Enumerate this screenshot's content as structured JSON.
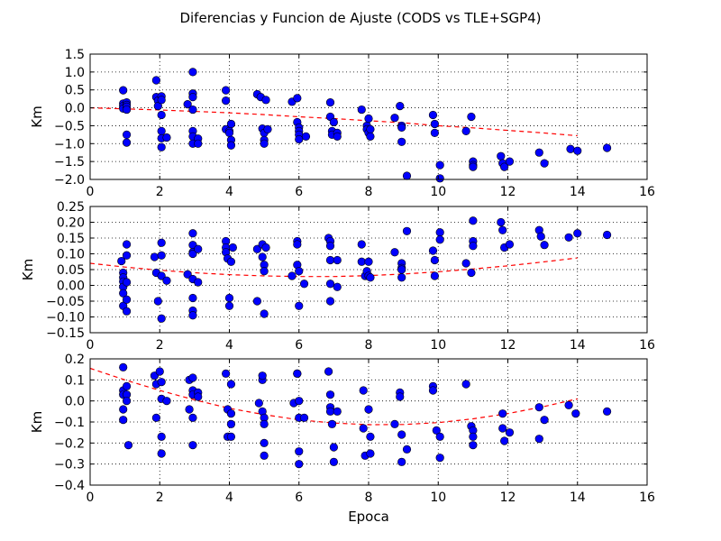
{
  "figure_title": "Diferencias y Funcion de Ajuste (CODS vs TLE+SGP4)",
  "colors": {
    "points": "#0000ff",
    "point_edge": "#000000",
    "fit": "#ff0000",
    "grid": "#000000"
  },
  "chart_data": [
    {
      "type": "scatter",
      "xlabel": "",
      "ylabel": "Km",
      "xlim": [
        0,
        16
      ],
      "ylim": [
        -2.0,
        1.5
      ],
      "xticks": [
        0,
        2,
        4,
        6,
        8,
        10,
        12,
        14,
        16
      ],
      "yticks": [
        -2.0,
        -1.5,
        -1.0,
        -0.5,
        0.0,
        0.5,
        1.0,
        1.5
      ],
      "xtick_labels": [
        "0",
        "2",
        "4",
        "6",
        "8",
        "10",
        "12",
        "14",
        "16"
      ],
      "ytick_labels": [
        "−2.0",
        "−1.5",
        "−1.0",
        "−0.5",
        "0.0",
        "0.5",
        "1.0",
        "1.5"
      ],
      "grid": true,
      "points": [
        [
          0.95,
          0.49
        ],
        [
          0.95,
          0.12
        ],
        [
          0.95,
          0.05
        ],
        [
          0.95,
          -0.02
        ],
        [
          1.05,
          0.15
        ],
        [
          1.05,
          0.08
        ],
        [
          1.05,
          0.03
        ],
        [
          1.05,
          -0.05
        ],
        [
          1.05,
          -0.75
        ],
        [
          1.05,
          -0.97
        ],
        [
          1.9,
          0.77
        ],
        [
          1.9,
          0.3
        ],
        [
          1.95,
          0.2
        ],
        [
          1.95,
          0.05
        ],
        [
          2.05,
          0.32
        ],
        [
          2.05,
          0.22
        ],
        [
          2.05,
          -0.2
        ],
        [
          2.05,
          -0.65
        ],
        [
          2.05,
          -0.85
        ],
        [
          2.05,
          -1.1
        ],
        [
          2.2,
          -0.83
        ],
        [
          2.8,
          0.1
        ],
        [
          2.95,
          1.0
        ],
        [
          2.95,
          0.4
        ],
        [
          2.95,
          0.3
        ],
        [
          2.95,
          -0.05
        ],
        [
          2.95,
          -0.65
        ],
        [
          2.95,
          -0.8
        ],
        [
          2.95,
          -1.0
        ],
        [
          3.1,
          -0.86
        ],
        [
          3.1,
          -1.0
        ],
        [
          3.9,
          0.49
        ],
        [
          3.9,
          0.2
        ],
        [
          3.9,
          -0.6
        ],
        [
          4.0,
          -0.65
        ],
        [
          4.0,
          -0.7
        ],
        [
          4.05,
          -0.45
        ],
        [
          4.05,
          -0.9
        ],
        [
          4.05,
          -1.05
        ],
        [
          4.8,
          0.38
        ],
        [
          4.9,
          0.3
        ],
        [
          4.95,
          -0.58
        ],
        [
          5.0,
          -0.7
        ],
        [
          5.0,
          -0.9
        ],
        [
          5.0,
          -1.0
        ],
        [
          5.05,
          0.22
        ],
        [
          5.1,
          -0.6
        ],
        [
          5.8,
          0.17
        ],
        [
          5.95,
          0.27
        ],
        [
          5.95,
          -0.4
        ],
        [
          6.0,
          -0.55
        ],
        [
          6.0,
          -0.65
        ],
        [
          6.0,
          -0.75
        ],
        [
          6.0,
          -0.88
        ],
        [
          6.2,
          -0.8
        ],
        [
          6.9,
          0.15
        ],
        [
          6.9,
          -0.25
        ],
        [
          6.95,
          -0.65
        ],
        [
          6.95,
          -0.75
        ],
        [
          7.0,
          -0.4
        ],
        [
          7.1,
          -0.7
        ],
        [
          7.1,
          -0.8
        ],
        [
          7.8,
          -0.05
        ],
        [
          7.95,
          -0.5
        ],
        [
          7.95,
          -0.6
        ],
        [
          8.0,
          -0.3
        ],
        [
          8.0,
          -0.7
        ],
        [
          8.05,
          -0.6
        ],
        [
          8.05,
          -0.8
        ],
        [
          8.75,
          -0.28
        ],
        [
          8.9,
          0.05
        ],
        [
          8.95,
          -0.5
        ],
        [
          8.95,
          -0.55
        ],
        [
          8.95,
          -0.95
        ],
        [
          9.1,
          -1.9
        ],
        [
          9.85,
          -0.2
        ],
        [
          9.9,
          -0.45
        ],
        [
          9.9,
          -0.7
        ],
        [
          10.05,
          -1.6
        ],
        [
          10.05,
          -1.97
        ],
        [
          10.8,
          -0.65
        ],
        [
          10.95,
          -0.25
        ],
        [
          11.0,
          -1.5
        ],
        [
          11.0,
          -1.6
        ],
        [
          11.0,
          -1.65
        ],
        [
          11.8,
          -1.35
        ],
        [
          11.85,
          -1.55
        ],
        [
          11.9,
          -1.65
        ],
        [
          12.05,
          -1.5
        ],
        [
          12.9,
          -1.25
        ],
        [
          13.05,
          -1.55
        ],
        [
          13.8,
          -1.15
        ],
        [
          14.0,
          -1.2
        ],
        [
          14.85,
          -1.12
        ]
      ],
      "fit_curve": [
        [
          0,
          0.0
        ],
        [
          1,
          -0.03
        ],
        [
          2,
          -0.06
        ],
        [
          3,
          -0.1
        ],
        [
          4,
          -0.14
        ],
        [
          5,
          -0.19
        ],
        [
          6,
          -0.25
        ],
        [
          7,
          -0.3
        ],
        [
          8,
          -0.36
        ],
        [
          9,
          -0.42
        ],
        [
          10,
          -0.5
        ],
        [
          11,
          -0.56
        ],
        [
          12,
          -0.63
        ],
        [
          13,
          -0.7
        ],
        [
          14,
          -0.78
        ]
      ]
    },
    {
      "type": "scatter",
      "xlabel": "",
      "ylabel": "Km",
      "xlim": [
        0,
        16
      ],
      "ylim": [
        -0.15,
        0.25
      ],
      "xticks": [
        0,
        2,
        4,
        6,
        8,
        10,
        12,
        14,
        16
      ],
      "yticks": [
        -0.15,
        -0.1,
        -0.05,
        0.0,
        0.05,
        0.1,
        0.15,
        0.2,
        0.25
      ],
      "xtick_labels": [
        "0",
        "2",
        "4",
        "6",
        "8",
        "10",
        "12",
        "14",
        "16"
      ],
      "ytick_labels": [
        "−0.15",
        "−0.10",
        "−0.05",
        "0.00",
        "0.05",
        "0.10",
        "0.15",
        "0.20",
        "0.25"
      ],
      "grid": true,
      "points": [
        [
          0.9,
          0.077
        ],
        [
          0.95,
          0.04
        ],
        [
          0.95,
          0.025
        ],
        [
          0.95,
          0.012
        ],
        [
          0.95,
          -0.005
        ],
        [
          0.95,
          -0.025
        ],
        [
          0.95,
          -0.065
        ],
        [
          1.05,
          0.13
        ],
        [
          1.05,
          0.095
        ],
        [
          1.05,
          0.01
        ],
        [
          1.05,
          -0.045
        ],
        [
          1.05,
          -0.082
        ],
        [
          1.85,
          0.09
        ],
        [
          1.9,
          0.04
        ],
        [
          1.95,
          -0.05
        ],
        [
          2.05,
          0.135
        ],
        [
          2.05,
          0.095
        ],
        [
          2.05,
          0.03
        ],
        [
          2.05,
          -0.105
        ],
        [
          2.2,
          0.015
        ],
        [
          2.8,
          0.035
        ],
        [
          2.95,
          0.165
        ],
        [
          2.95,
          0.128
        ],
        [
          2.95,
          0.105
        ],
        [
          2.95,
          0.1
        ],
        [
          2.95,
          0.02
        ],
        [
          2.95,
          -0.04
        ],
        [
          2.95,
          -0.08
        ],
        [
          2.95,
          -0.095
        ],
        [
          3.1,
          0.115
        ],
        [
          3.1,
          0.01
        ],
        [
          3.9,
          0.14
        ],
        [
          3.9,
          0.12
        ],
        [
          3.9,
          0.105
        ],
        [
          3.95,
          0.085
        ],
        [
          4.0,
          -0.04
        ],
        [
          4.0,
          -0.065
        ],
        [
          4.05,
          0.075
        ],
        [
          4.1,
          0.12
        ],
        [
          4.8,
          0.115
        ],
        [
          4.8,
          -0.05
        ],
        [
          4.95,
          0.13
        ],
        [
          4.95,
          0.09
        ],
        [
          5.0,
          0.065
        ],
        [
          5.0,
          0.045
        ],
        [
          5.0,
          -0.09
        ],
        [
          5.05,
          0.12
        ],
        [
          5.8,
          0.03
        ],
        [
          5.95,
          0.14
        ],
        [
          5.95,
          0.13
        ],
        [
          5.95,
          0.065
        ],
        [
          6.0,
          0.045
        ],
        [
          6.0,
          -0.065
        ],
        [
          6.15,
          0.005
        ],
        [
          6.85,
          0.15
        ],
        [
          6.9,
          0.14
        ],
        [
          6.9,
          0.125
        ],
        [
          6.9,
          0.08
        ],
        [
          6.9,
          0.005
        ],
        [
          6.9,
          -0.05
        ],
        [
          7.1,
          0.08
        ],
        [
          7.1,
          -0.005
        ],
        [
          7.8,
          0.13
        ],
        [
          7.8,
          0.075
        ],
        [
          7.9,
          0.03
        ],
        [
          7.95,
          0.045
        ],
        [
          8.0,
          0.075
        ],
        [
          8.0,
          0.03
        ],
        [
          8.05,
          0.025
        ],
        [
          8.75,
          0.105
        ],
        [
          8.95,
          0.07
        ],
        [
          8.95,
          0.055
        ],
        [
          8.95,
          0.05
        ],
        [
          8.95,
          0.025
        ],
        [
          9.1,
          0.172
        ],
        [
          9.85,
          0.11
        ],
        [
          9.9,
          0.08
        ],
        [
          9.9,
          0.03
        ],
        [
          10.05,
          0.168
        ],
        [
          10.05,
          0.145
        ],
        [
          10.8,
          0.07
        ],
        [
          10.95,
          0.04
        ],
        [
          11.0,
          0.205
        ],
        [
          11.0,
          0.14
        ],
        [
          11.0,
          0.125
        ],
        [
          11.8,
          0.2
        ],
        [
          11.85,
          0.175
        ],
        [
          11.9,
          0.12
        ],
        [
          12.05,
          0.13
        ],
        [
          12.9,
          0.175
        ],
        [
          12.95,
          0.155
        ],
        [
          13.05,
          0.128
        ],
        [
          13.75,
          0.152
        ],
        [
          14.0,
          0.165
        ],
        [
          14.85,
          0.16
        ]
      ],
      "fit_curve": [
        [
          0,
          0.07
        ],
        [
          1,
          0.058
        ],
        [
          2,
          0.048
        ],
        [
          3,
          0.04
        ],
        [
          4,
          0.034
        ],
        [
          5,
          0.03
        ],
        [
          6,
          0.028
        ],
        [
          7,
          0.028
        ],
        [
          8,
          0.031
        ],
        [
          9,
          0.036
        ],
        [
          10,
          0.043
        ],
        [
          11,
          0.052
        ],
        [
          12,
          0.062
        ],
        [
          13,
          0.074
        ],
        [
          14,
          0.087
        ]
      ]
    },
    {
      "type": "scatter",
      "xlabel": "Epoca",
      "ylabel": "Km",
      "xlim": [
        0,
        16
      ],
      "ylim": [
        -0.4,
        0.2
      ],
      "xticks": [
        0,
        2,
        4,
        6,
        8,
        10,
        12,
        14,
        16
      ],
      "yticks": [
        -0.4,
        -0.3,
        -0.2,
        -0.1,
        0.0,
        0.1,
        0.2
      ],
      "xtick_labels": [
        "0",
        "2",
        "4",
        "6",
        "8",
        "10",
        "12",
        "14",
        "16"
      ],
      "ytick_labels": [
        "−0.4",
        "−0.3",
        "−0.2",
        "−0.1",
        "0.0",
        "0.1",
        "0.2"
      ],
      "grid": true,
      "points": [
        [
          0.95,
          0.16
        ],
        [
          0.95,
          0.05
        ],
        [
          0.95,
          0.03
        ],
        [
          0.95,
          -0.04
        ],
        [
          0.95,
          -0.09
        ],
        [
          1.05,
          0.07
        ],
        [
          1.05,
          0.03
        ],
        [
          1.05,
          0.0
        ],
        [
          1.1,
          -0.21
        ],
        [
          1.85,
          0.12
        ],
        [
          1.9,
          0.08
        ],
        [
          1.9,
          -0.08
        ],
        [
          2.0,
          0.14
        ],
        [
          2.05,
          0.09
        ],
        [
          2.05,
          0.01
        ],
        [
          2.05,
          -0.17
        ],
        [
          2.05,
          -0.25
        ],
        [
          2.2,
          0.0
        ],
        [
          2.85,
          0.1
        ],
        [
          2.85,
          -0.04
        ],
        [
          2.95,
          0.11
        ],
        [
          2.95,
          0.05
        ],
        [
          2.95,
          0.03
        ],
        [
          2.95,
          -0.08
        ],
        [
          2.95,
          -0.21
        ],
        [
          3.1,
          0.04
        ],
        [
          3.1,
          0.02
        ],
        [
          3.9,
          0.13
        ],
        [
          3.95,
          -0.04
        ],
        [
          3.95,
          -0.17
        ],
        [
          4.05,
          0.08
        ],
        [
          4.05,
          -0.06
        ],
        [
          4.05,
          -0.17
        ],
        [
          4.05,
          -0.11
        ],
        [
          4.85,
          -0.01
        ],
        [
          4.95,
          0.1
        ],
        [
          4.95,
          0.12
        ],
        [
          4.95,
          -0.05
        ],
        [
          5.0,
          -0.08
        ],
        [
          5.0,
          -0.11
        ],
        [
          5.0,
          -0.2
        ],
        [
          5.0,
          -0.26
        ],
        [
          5.85,
          -0.01
        ],
        [
          5.95,
          0.13
        ],
        [
          5.95,
          0.13
        ],
        [
          6.0,
          0.0
        ],
        [
          6.0,
          -0.08
        ],
        [
          6.0,
          -0.24
        ],
        [
          6.0,
          -0.3
        ],
        [
          6.15,
          -0.08
        ],
        [
          6.85,
          0.14
        ],
        [
          6.9,
          0.03
        ],
        [
          6.9,
          -0.03
        ],
        [
          6.9,
          -0.05
        ],
        [
          6.95,
          -0.11
        ],
        [
          7.0,
          -0.22
        ],
        [
          7.0,
          -0.29
        ],
        [
          7.1,
          -0.05
        ],
        [
          7.85,
          0.05
        ],
        [
          7.85,
          -0.13
        ],
        [
          7.9,
          -0.26
        ],
        [
          8.0,
          -0.04
        ],
        [
          8.05,
          -0.17
        ],
        [
          8.05,
          -0.25
        ],
        [
          8.75,
          -0.11
        ],
        [
          8.9,
          0.04
        ],
        [
          8.9,
          0.02
        ],
        [
          8.95,
          -0.16
        ],
        [
          8.95,
          -0.29
        ],
        [
          9.1,
          -0.23
        ],
        [
          9.85,
          0.07
        ],
        [
          9.85,
          0.05
        ],
        [
          9.95,
          -0.14
        ],
        [
          10.05,
          -0.17
        ],
        [
          10.05,
          -0.27
        ],
        [
          10.8,
          0.08
        ],
        [
          10.95,
          -0.12
        ],
        [
          11.0,
          -0.14
        ],
        [
          11.0,
          -0.17
        ],
        [
          11.0,
          -0.21
        ],
        [
          11.85,
          -0.06
        ],
        [
          11.85,
          -0.13
        ],
        [
          11.9,
          -0.19
        ],
        [
          12.05,
          -0.15
        ],
        [
          12.9,
          -0.03
        ],
        [
          12.9,
          -0.18
        ],
        [
          13.05,
          -0.09
        ],
        [
          13.75,
          -0.02
        ],
        [
          13.95,
          -0.06
        ],
        [
          14.85,
          -0.05
        ]
      ],
      "fit_curve": [
        [
          0,
          0.155
        ],
        [
          1,
          0.1
        ],
        [
          2,
          0.05
        ],
        [
          3,
          0.005
        ],
        [
          4,
          -0.035
        ],
        [
          5,
          -0.065
        ],
        [
          6,
          -0.09
        ],
        [
          7,
          -0.105
        ],
        [
          8,
          -0.113
        ],
        [
          9,
          -0.112
        ],
        [
          10,
          -0.103
        ],
        [
          11,
          -0.085
        ],
        [
          12,
          -0.06
        ],
        [
          13,
          -0.028
        ],
        [
          14,
          0.01
        ]
      ]
    }
  ]
}
